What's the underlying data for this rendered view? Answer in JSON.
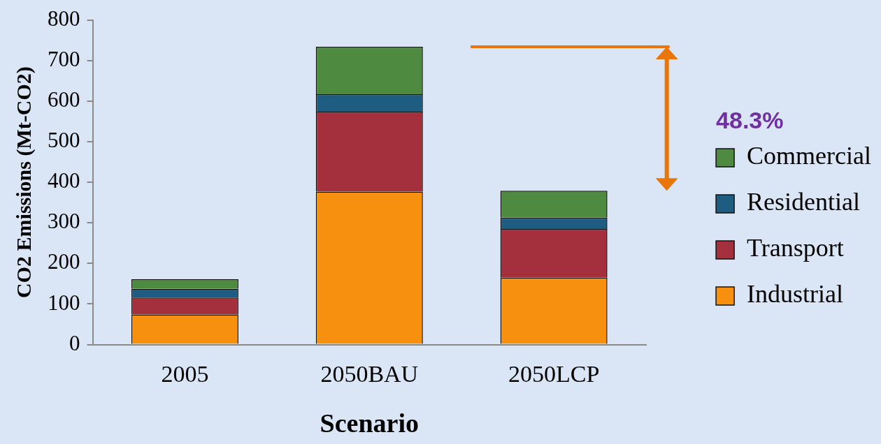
{
  "chart_data": {
    "type": "bar",
    "stacked": true,
    "xlabel": "Scenario",
    "ylabel": "CO2 Emissions (Mt-CO2)",
    "categories": [
      "2005",
      "2050BAU",
      "2050LCP"
    ],
    "series": [
      {
        "name": "Industrial",
        "color": "#f7900f",
        "values": [
          74,
          377,
          165
        ]
      },
      {
        "name": "Transport",
        "color": "#a3303c",
        "values": [
          42,
          197,
          120
        ]
      },
      {
        "name": "Residential",
        "color": "#1f5c82",
        "values": [
          22,
          43,
          28
        ]
      },
      {
        "name": "Commercial",
        "color": "#4e8a40",
        "values": [
          23,
          117,
          66
        ]
      }
    ],
    "ylim": [
      0,
      800
    ],
    "yticks": [
      0,
      100,
      200,
      300,
      400,
      500,
      600,
      700,
      800
    ],
    "grid": false,
    "legend": "right",
    "annotations": [
      "48.3%"
    ]
  }
}
